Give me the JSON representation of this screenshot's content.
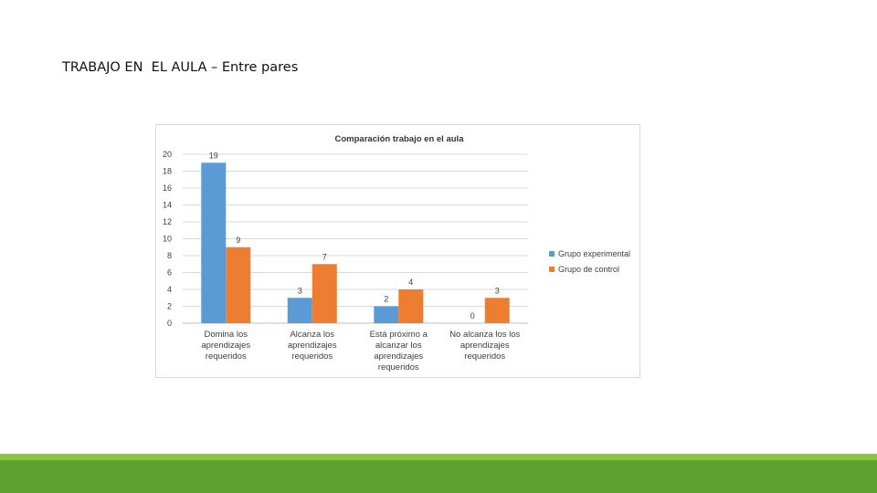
{
  "slide": {
    "title": "TRABAJO EN  EL AULA – Entre pares",
    "footer_colors": {
      "light": "#8cc63e",
      "dark": "#5da130"
    }
  },
  "chart_data": {
    "type": "bar",
    "title": "Comparación trabajo en el aula",
    "categories": [
      [
        "Domina los",
        "aprendizajes",
        "requeridos"
      ],
      [
        "Alcanza los",
        "aprendizajes",
        "requeridos"
      ],
      [
        "Está próximo a",
        "alcanzar  los",
        "aprendizajes",
        "requeridos"
      ],
      [
        "No alcanza los  los",
        "aprendizajes",
        "requeridos"
      ]
    ],
    "series": [
      {
        "name": "Grupo experimental",
        "values": [
          19,
          3,
          2,
          0
        ],
        "color": "#5b9bd5"
      },
      {
        "name": "Grupo de control",
        "values": [
          9,
          7,
          4,
          3
        ],
        "color": "#ed7d31"
      }
    ],
    "ylim": [
      0,
      20
    ],
    "yticks": [
      0,
      2,
      4,
      6,
      8,
      10,
      12,
      14,
      16,
      18,
      20
    ],
    "grid": true,
    "legend_position": "right",
    "data_labels": true
  }
}
